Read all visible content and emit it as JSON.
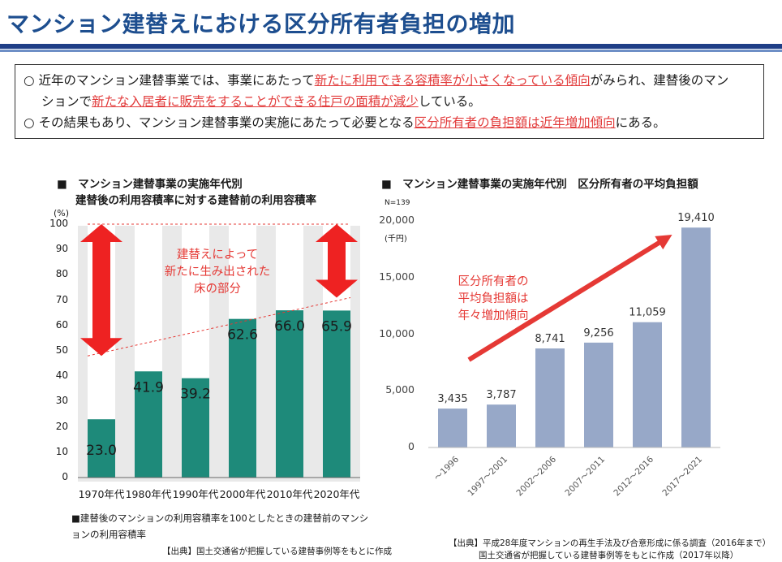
{
  "header": {
    "title": "マンション建替えにおける区分所有者負担の増加"
  },
  "summary": {
    "bullet1": {
      "mark": "○",
      "t1": "近年のマンション建替事業では、事業にあたって",
      "hl1": "新たに利用できる容積率が小さくなっている傾向",
      "t2": "がみられ、建替後のマン",
      "t3": "ションで",
      "hl2": "新たな入居者に販売をすることができる住戸の面積が減少",
      "t4": "している。"
    },
    "bullet2": {
      "mark": "○",
      "t1": "その結果もあり、マンション建替事業の実施にあたって必要となる",
      "hl1": "区分所有者の負担額は近年増加傾向",
      "t2": "にある。"
    }
  },
  "left_chart": {
    "title_line1": "■　マンション建替事業の実施年代別",
    "title_line2": "建替後の利用容積率に対する建替前の利用容積率",
    "unit": "(%)",
    "annotation": [
      "建替えによって",
      "新たに生み出された",
      "床の部分"
    ],
    "legend": "■建替後のマンションの利用容積率を100としたときの建替前のマンションの利用容積率",
    "source": "【出典】国土交通省が把握している建替事例等をもとに作成"
  },
  "right_chart": {
    "title": "■　マンション建替事業の実施年代別　区分所有者の平均負担額",
    "n_label": "N=139",
    "unit": "(千円)",
    "annotation": [
      "区分所有者の",
      "平均負担額は",
      "年々増加傾向"
    ],
    "source_line1": "【出典】平成28年度マンションの再生手法及び合意形成に係る調査（2016年まで）",
    "source_line2": "国土交通省が把握している建替事例等をもとに作成（2017年以降）"
  },
  "chart_data": [
    {
      "type": "bar",
      "categories": [
        "1970年代",
        "1980年代",
        "1990年代",
        "2000年代",
        "2010年代",
        "2020年代"
      ],
      "values": [
        23.0,
        41.9,
        39.2,
        62.6,
        66.0,
        65.9
      ],
      "value_labels": [
        "23.0",
        "41.9",
        "39.2",
        "62.6",
        "66.0",
        "65.9"
      ],
      "ylim": [
        0,
        100
      ],
      "yticks": [
        0,
        10,
        20,
        30,
        40,
        50,
        60,
        70,
        80,
        90,
        100
      ],
      "bar_color": "#1e8a7a",
      "grid": false
    },
    {
      "type": "bar",
      "categories": [
        "～1996",
        "1997～2001",
        "2002～2006",
        "2007～2011",
        "2012～2016",
        "2017～2021"
      ],
      "values": [
        3435,
        3787,
        8741,
        9256,
        11059,
        19410
      ],
      "value_labels": [
        "3,435",
        "3,787",
        "8,741",
        "9,256",
        "11,059",
        "19,410"
      ],
      "ylim": [
        0,
        20000
      ],
      "yticks": [
        0,
        5000,
        10000,
        15000,
        20000
      ],
      "ytick_labels": [
        "0",
        "5,000",
        "10,000",
        "15,000",
        "20,000"
      ],
      "bar_color": "#97a8c8",
      "grid": false
    }
  ]
}
